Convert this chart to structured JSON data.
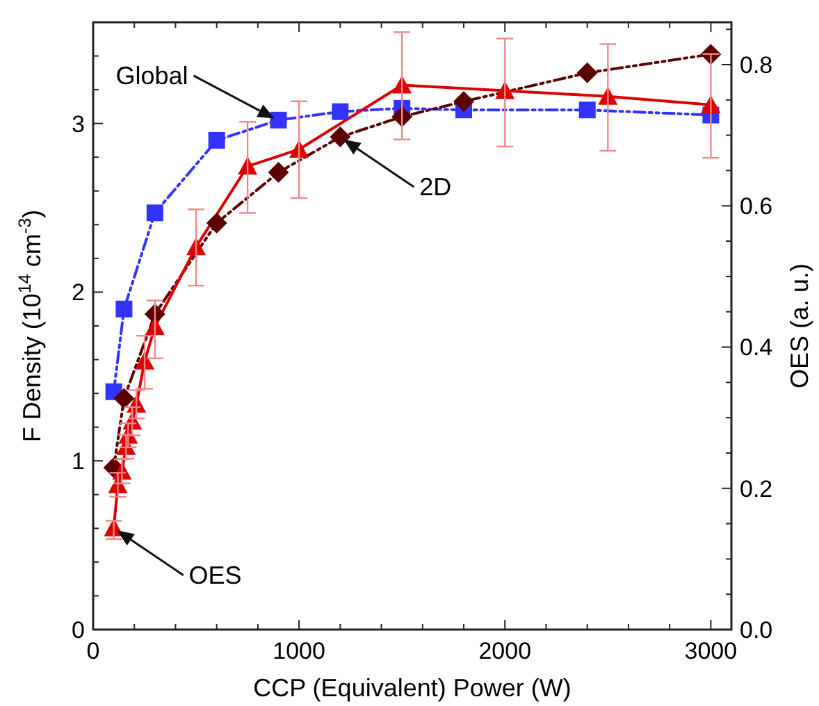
{
  "chart_data": {
    "type": "line",
    "xlabel": "CCP (Equivalent) Power (W)",
    "ylabel": "F Density (10$^{14}$ cm$^{-3}$)",
    "y2label": "OES (a. u.)",
    "xlim": [
      0,
      3100
    ],
    "xticks": [
      0,
      {
        "value": 200,
        "label": null
      },
      {
        "value": 400,
        "label": null
      },
      {
        "value": 600,
        "label": null
      },
      {
        "value": 800,
        "label": null
      },
      1000,
      {
        "value": 1200,
        "label": null
      },
      {
        "value": 1400,
        "label": null
      },
      {
        "value": 1600,
        "label": null
      },
      {
        "value": 1800,
        "label": null
      },
      2000,
      {
        "value": 2200,
        "label": null
      },
      {
        "value": 2400,
        "label": null
      },
      {
        "value": 2600,
        "label": null
      },
      {
        "value": 2800,
        "label": null
      },
      3000
    ],
    "ylim": [
      0,
      3.6
    ],
    "yticks": [
      0,
      {
        "value": 0.2,
        "label": null
      },
      {
        "value": 0.4,
        "label": null
      },
      {
        "value": 0.6,
        "label": null
      },
      {
        "value": 0.8,
        "label": null
      },
      1,
      {
        "value": 1.2,
        "label": null
      },
      {
        "value": 1.4,
        "label": null
      },
      {
        "value": 1.6,
        "label": null
      },
      {
        "value": 1.8,
        "label": null
      },
      2,
      {
        "value": 2.2,
        "label": null
      },
      {
        "value": 2.4,
        "label": null
      },
      {
        "value": 2.6,
        "label": null
      },
      {
        "value": 2.8,
        "label": null
      },
      3,
      {
        "value": 3.2,
        "label": null
      },
      {
        "value": 3.4,
        "label": null
      }
    ],
    "y2lim": [
      0,
      0.86
    ],
    "y2ticks": [
      "0.0",
      {
        "value": 0.05,
        "label": null
      },
      {
        "value": 0.1,
        "label": null
      },
      {
        "value": 0.15,
        "label": null
      },
      {
        "value": 0.2,
        "label": "0.2"
      },
      {
        "value": 0.25,
        "label": null
      },
      {
        "value": 0.3,
        "label": null
      },
      {
        "value": 0.35,
        "label": null
      },
      {
        "value": 0.4,
        "label": "0.4"
      },
      {
        "value": 0.45,
        "label": null
      },
      {
        "value": 0.5,
        "label": null
      },
      {
        "value": 0.55,
        "label": null
      },
      {
        "value": 0.6,
        "label": "0.6"
      },
      {
        "value": 0.65,
        "label": null
      },
      {
        "value": 0.7,
        "label": null
      },
      {
        "value": 0.75,
        "label": null
      },
      {
        "value": 0.8,
        "label": "0.8"
      },
      {
        "value": 0.85,
        "label": null
      }
    ],
    "grid": false,
    "series": [
      {
        "color": "#3333ff",
        "marker": "square",
        "line_style": "dashed",
        "x": [
          100,
          150,
          300,
          600,
          900,
          1200,
          1500,
          1800,
          2400,
          3000
        ],
        "values": [
          1.41,
          1.9,
          2.47,
          2.9,
          3.02,
          3.07,
          3.09,
          3.08,
          3.08,
          3.05
        ]
      },
      {
        "color": "#5c0000",
        "marker": "diamond",
        "line_style": "dashed",
        "x": [
          100,
          150,
          300,
          600,
          900,
          1200,
          1500,
          1800,
          2400,
          3000
        ],
        "values": [
          0.96,
          1.37,
          1.87,
          2.41,
          2.71,
          2.92,
          3.04,
          3.13,
          3.3,
          3.41
        ]
      },
      {
        "color": "#dd0000",
        "marker": "triangle",
        "line_style": "solid",
        "axis": "y2",
        "x": [
          100,
          120,
          140,
          160,
          170,
          190,
          210,
          250,
          300,
          500,
          750,
          1000,
          1500,
          2000,
          2500,
          3000
        ],
        "values": [
          0.144,
          0.205,
          0.224,
          0.259,
          0.275,
          0.295,
          0.319,
          0.38,
          0.429,
          0.542,
          0.656,
          0.68,
          0.771,
          0.763,
          0.755,
          0.743
        ],
        "errors": [
          [
            0.128,
            0.154
          ],
          0.017,
          0.017,
          0.017,
          0.017,
          0.02,
          0.02,
          [
            0.341,
            0.416
          ],
          [
            0.384,
            0.466
          ],
          [
            0.487,
            0.595
          ],
          [
            0.59,
            0.719
          ],
          [
            0.611,
            0.748
          ],
          [
            0.694,
            0.846
          ],
          [
            0.684,
            0.837
          ],
          [
            0.678,
            0.829
          ],
          [
            0.668,
            0.815
          ]
        ]
      }
    ],
    "annotations": [
      "Global",
      "2D",
      "OES"
    ]
  }
}
